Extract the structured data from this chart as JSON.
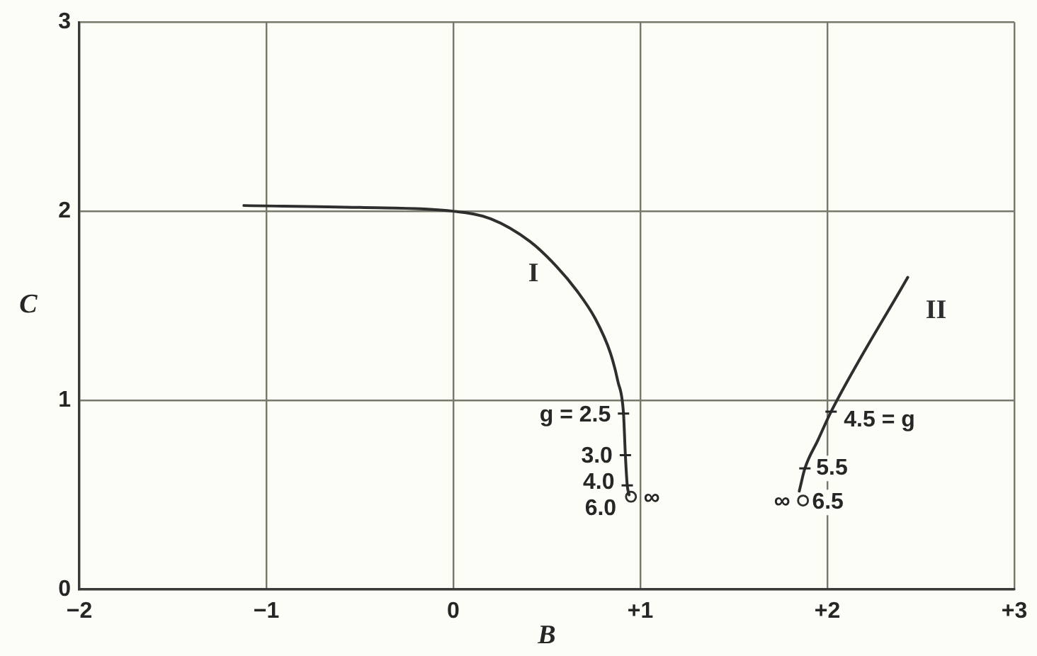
{
  "chart_data": {
    "type": "line",
    "xlabel": "B",
    "ylabel": "C",
    "xlim": [
      -2,
      3
    ],
    "ylim": [
      0,
      3
    ],
    "xticks": [
      {
        "value": -2,
        "label": "−2"
      },
      {
        "value": -1,
        "label": "−1"
      },
      0,
      {
        "value": 1,
        "label": "+1"
      },
      {
        "value": 2,
        "label": "+2"
      },
      {
        "value": 3,
        "label": "+3"
      }
    ],
    "yticks": [
      0,
      1,
      2,
      3
    ],
    "grid": true,
    "series": [
      {
        "name": "I",
        "type": "line",
        "color": "#2e2e2e",
        "x": [
          -1.12,
          -0.5,
          0,
          0.2,
          0.41,
          0.55,
          0.66,
          0.76,
          0.84,
          0.88,
          0.91,
          0.92,
          0.93,
          0.94
        ],
        "values": [
          2.03,
          2.02,
          2.0,
          1.96,
          1.84,
          1.71,
          1.58,
          1.43,
          1.25,
          1.1,
          0.93,
          0.71,
          0.55,
          0.5
        ]
      },
      {
        "name": "II",
        "type": "line",
        "color": "#2e2e2e",
        "x": [
          1.85,
          1.88,
          1.95,
          2.02,
          2.43
        ],
        "values": [
          0.52,
          0.64,
          0.79,
          0.94,
          1.65
        ]
      },
      {
        "type": "scatter",
        "color": "#2e2e2e",
        "marker": "circle",
        "x": [
          0.95,
          1.87
        ],
        "values": [
          0.49,
          0.47
        ]
      }
    ],
    "annotations": [
      {
        "text": "g = 2.5",
        "x": 0.91,
        "y": 0.93
      },
      {
        "text": "3.0",
        "x": 0.92,
        "y": 0.71
      },
      {
        "text": "4.0",
        "x": 0.93,
        "y": 0.55
      },
      {
        "text": "6.0",
        "x": 0.94,
        "y": 0.5
      },
      {
        "text": "∞",
        "x": 0.95,
        "y": 0.49
      },
      {
        "text": "4.5 = g",
        "x": 2.02,
        "y": 0.94
      },
      {
        "text": "5.5",
        "x": 1.88,
        "y": 0.64
      },
      {
        "text": "6.5",
        "x": 1.85,
        "y": 0.52
      },
      {
        "text": "∞",
        "x": 1.87,
        "y": 0.47
      }
    ]
  }
}
